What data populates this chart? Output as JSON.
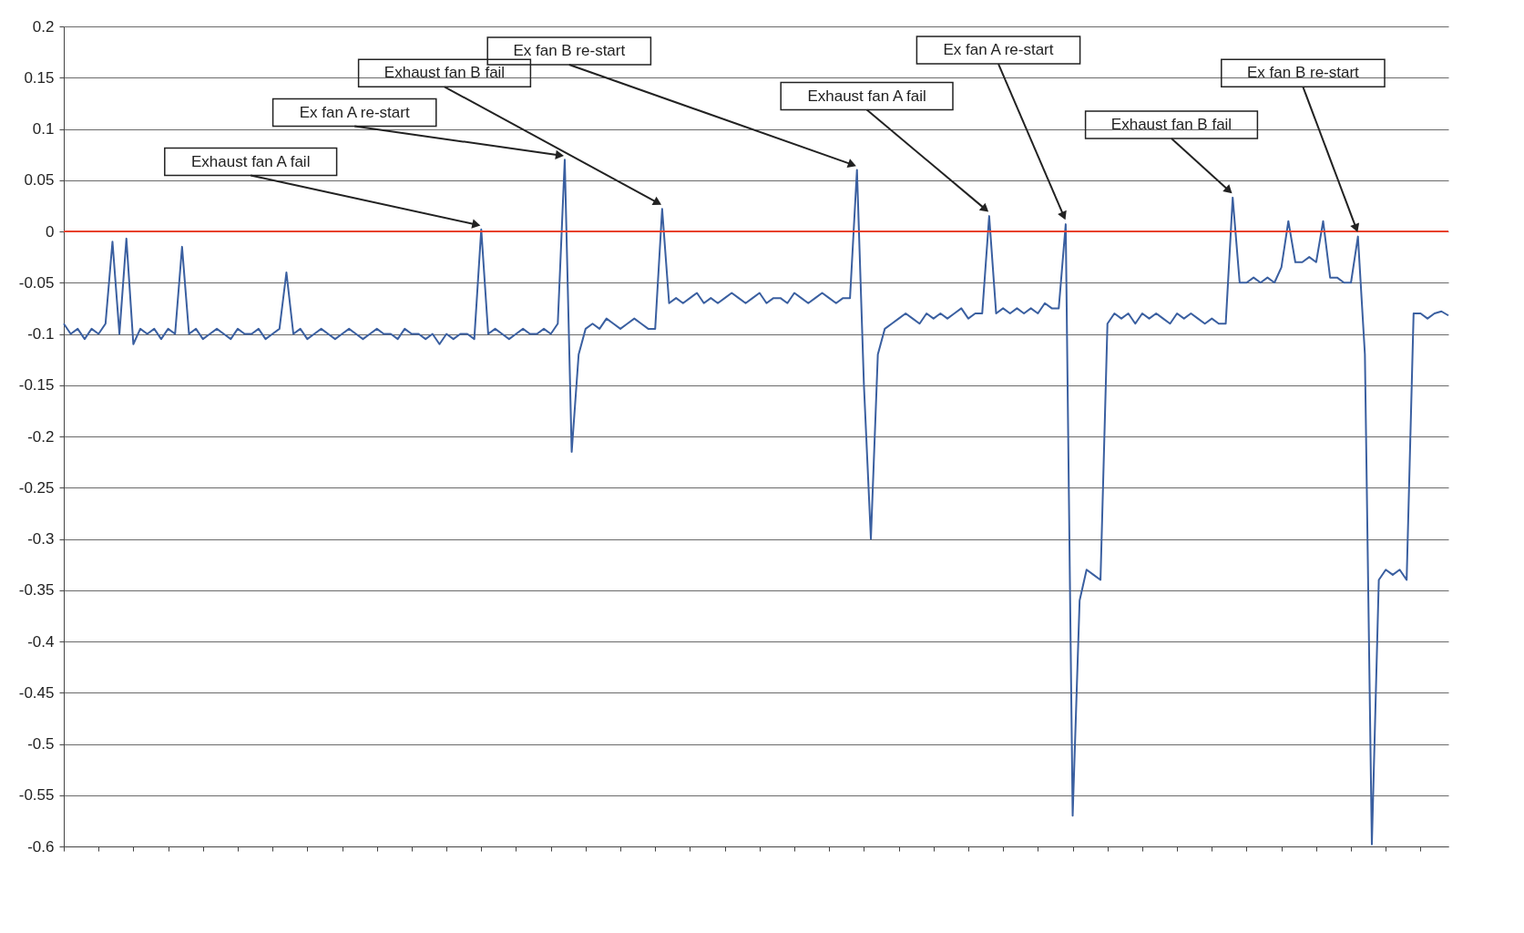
{
  "chart_data": {
    "type": "line",
    "categories": [
      null,
      null,
      null,
      null,
      null,
      null,
      null,
      null,
      null,
      null,
      null,
      null,
      null,
      null,
      null,
      null,
      null,
      null,
      null,
      null,
      null,
      null,
      null,
      null,
      null,
      null,
      null,
      null,
      null,
      null,
      null,
      null,
      null,
      null,
      null,
      null,
      null,
      null,
      null,
      null,
      null,
      null,
      null,
      null,
      null,
      null,
      null,
      null,
      null,
      null,
      null,
      null,
      null,
      null,
      null,
      null,
      null,
      null,
      null,
      null,
      null,
      null,
      null,
      null,
      null,
      null,
      null,
      null,
      null,
      null,
      null,
      null,
      null,
      null,
      null,
      null,
      null,
      null,
      null,
      null,
      null,
      null,
      null,
      null,
      null,
      null,
      null,
      null,
      null,
      null,
      null,
      null,
      null,
      null,
      null,
      null,
      null,
      null,
      null,
      null,
      null,
      null,
      null,
      null,
      null,
      null,
      null,
      null,
      null,
      null,
      null,
      null,
      null,
      null,
      null,
      null,
      null,
      null,
      null,
      null,
      null,
      null,
      null,
      null,
      null,
      null,
      null,
      null,
      null,
      null,
      null,
      null,
      null,
      null,
      null,
      null,
      null,
      null,
      null,
      null,
      null,
      null,
      null,
      null,
      null,
      null,
      null,
      null,
      null,
      null,
      null,
      null,
      null,
      null,
      null,
      null,
      null,
      null,
      null,
      null,
      null,
      null,
      null,
      null,
      null,
      null,
      null,
      null,
      null,
      null,
      null,
      null,
      null,
      null,
      null,
      null,
      null,
      null,
      null,
      null,
      null,
      null,
      null,
      null,
      null,
      null,
      null,
      null,
      null,
      null,
      null,
      null,
      null,
      null,
      null,
      null,
      null,
      null,
      null,
      null
    ],
    "series": [
      {
        "color": "#3a5fa0",
        "values": [
          -0.09,
          -0.1,
          -0.095,
          -0.105,
          -0.095,
          -0.1,
          -0.09,
          -0.01,
          -0.1,
          -0.007,
          -0.11,
          -0.095,
          -0.1,
          -0.095,
          -0.105,
          -0.095,
          -0.1,
          -0.015,
          -0.1,
          -0.095,
          -0.105,
          -0.1,
          -0.095,
          -0.1,
          -0.105,
          -0.095,
          -0.1,
          -0.1,
          -0.095,
          -0.105,
          -0.1,
          -0.095,
          -0.04,
          -0.1,
          -0.095,
          -0.105,
          -0.1,
          -0.095,
          -0.1,
          -0.105,
          -0.1,
          -0.095,
          -0.1,
          -0.105,
          -0.1,
          -0.095,
          -0.1,
          -0.1,
          -0.105,
          -0.095,
          -0.1,
          -0.1,
          -0.105,
          -0.1,
          -0.11,
          -0.1,
          -0.105,
          -0.1,
          -0.1,
          -0.105,
          0.002,
          -0.1,
          -0.095,
          -0.1,
          -0.105,
          -0.1,
          -0.095,
          -0.1,
          -0.1,
          -0.095,
          -0.1,
          -0.09,
          0.07,
          -0.215,
          -0.12,
          -0.095,
          -0.09,
          -0.095,
          -0.085,
          -0.09,
          -0.095,
          -0.09,
          -0.085,
          -0.09,
          -0.095,
          -0.095,
          0.022,
          -0.07,
          -0.065,
          -0.07,
          -0.065,
          -0.06,
          -0.07,
          -0.065,
          -0.07,
          -0.065,
          -0.06,
          -0.065,
          -0.07,
          -0.065,
          -0.06,
          -0.07,
          -0.065,
          -0.065,
          -0.07,
          -0.06,
          -0.065,
          -0.07,
          -0.065,
          -0.06,
          -0.065,
          -0.07,
          -0.065,
          -0.065,
          0.06,
          -0.15,
          -0.3,
          -0.12,
          -0.095,
          -0.09,
          -0.085,
          -0.08,
          -0.085,
          -0.09,
          -0.08,
          -0.085,
          -0.08,
          -0.085,
          -0.08,
          -0.075,
          -0.085,
          -0.08,
          -0.08,
          0.015,
          -0.08,
          -0.075,
          -0.08,
          -0.075,
          -0.08,
          -0.075,
          -0.08,
          -0.07,
          -0.075,
          -0.075,
          0.007,
          -0.57,
          -0.36,
          -0.33,
          -0.335,
          -0.34,
          -0.09,
          -0.08,
          -0.085,
          -0.08,
          -0.09,
          -0.08,
          -0.085,
          -0.08,
          -0.085,
          -0.09,
          -0.08,
          -0.085,
          -0.08,
          -0.085,
          -0.09,
          -0.085,
          -0.09,
          -0.09,
          0.033,
          -0.05,
          -0.05,
          -0.045,
          -0.05,
          -0.045,
          -0.05,
          -0.035,
          0.01,
          -0.03,
          -0.03,
          -0.025,
          -0.03,
          0.01,
          -0.045,
          -0.045,
          -0.05,
          -0.05,
          -0.005,
          -0.12,
          -0.598,
          -0.34,
          -0.33,
          -0.335,
          -0.33,
          -0.34,
          -0.08,
          -0.08,
          -0.085,
          -0.08,
          -0.078,
          -0.082
        ]
      }
    ],
    "ylim": [
      -0.6,
      0.2
    ],
    "yticks": [
      -0.6,
      -0.55,
      -0.5,
      -0.45,
      -0.4,
      -0.35,
      -0.3,
      -0.25,
      -0.2,
      -0.15,
      -0.1,
      -0.05,
      0,
      0.05,
      0.1,
      0.15,
      0.2
    ],
    "grid": "y",
    "tick_labels": "y",
    "ref_lines": [
      {
        "axis": "y",
        "value": 0,
        "color": "#e8412c"
      }
    ],
    "annotations": [
      "Exhaust fan A fail",
      "Ex fan A re-start",
      "Exhaust fan B fail",
      "Ex fan B re-start",
      "Exhaust fan A fail",
      "Ex fan A re-start",
      "Exhaust fan B fail",
      "Ex fan B re-start"
    ]
  }
}
